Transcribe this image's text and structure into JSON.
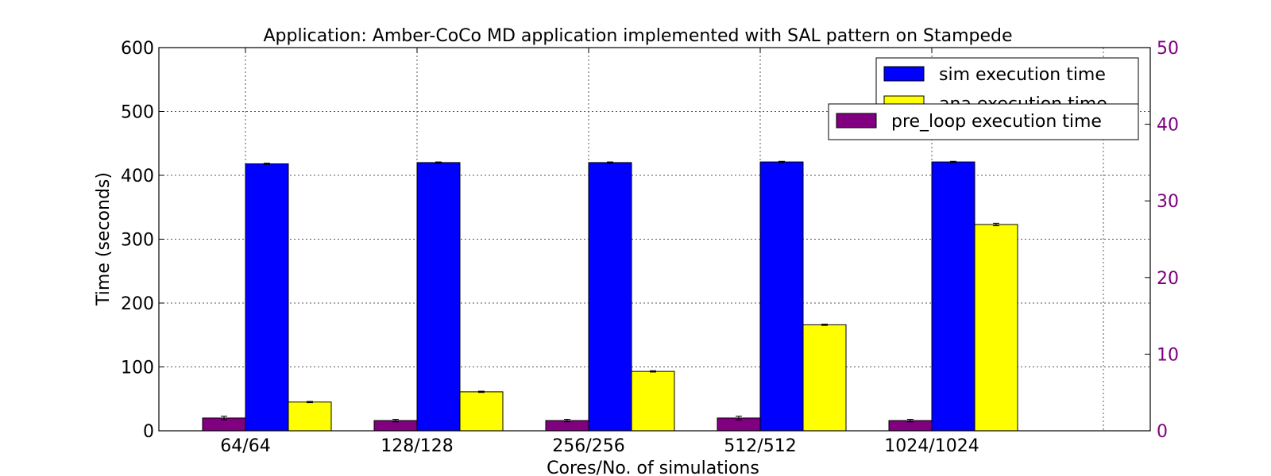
{
  "chart_data": {
    "type": "bar",
    "title": "Application: Amber-CoCo MD application implemented with SAL pattern on Stampede",
    "xlabel": "Cores/No. of simulations",
    "ylabel": "Time (seconds)",
    "categories": [
      "64/64",
      "128/128",
      "256/256",
      "512/512",
      "1024/1024"
    ],
    "ylim": [
      0,
      600
    ],
    "yticks": [
      0,
      100,
      200,
      300,
      400,
      500,
      600
    ],
    "y2lim": [
      0,
      50
    ],
    "y2ticks": [
      0,
      10,
      20,
      30,
      40,
      50
    ],
    "grid": true,
    "series": [
      {
        "name": "pre_loop execution time",
        "color": "#800080",
        "values": [
          20,
          16,
          16,
          20,
          16
        ],
        "errors": [
          3,
          2,
          2,
          3,
          2
        ]
      },
      {
        "name": "sim execution time",
        "color": "#0000ff",
        "values": [
          418,
          420,
          420,
          421,
          421
        ],
        "errors": [
          1,
          1,
          1,
          1,
          1
        ]
      },
      {
        "name": "ana execution time",
        "color": "#ffff00",
        "values": [
          45,
          61,
          93,
          166,
          323
        ],
        "errors": [
          1,
          1,
          1,
          1,
          2
        ]
      }
    ],
    "legend_1": [
      "sim execution time",
      "ana execution time"
    ],
    "legend_2": [
      "pre_loop execution time"
    ],
    "right_axis_color": "#800080"
  }
}
